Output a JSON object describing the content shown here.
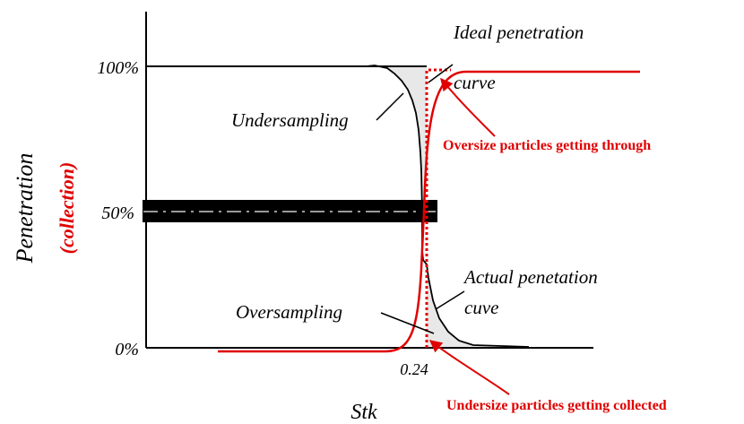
{
  "axes": {
    "y_title": "Penetration",
    "y_title_alt": "(collection)",
    "x_title": "Stk",
    "tick_100": "100%",
    "tick_50": "50%",
    "tick_0": "0%",
    "x_tick_value": "0.24"
  },
  "labels": {
    "ideal_line1": "Ideal penetration",
    "ideal_line2": "curve",
    "undersampling": "Undersampling",
    "oversampling": "Oversampling",
    "actual_line1": "Actual penetation",
    "actual_line2": "cuve",
    "oversize": "Oversize particles getting through",
    "undersize": "Undersize particles getting collected"
  },
  "colors": {
    "axis": "#000000",
    "actual_curve": "#000000",
    "shading": "#e8e8e8",
    "collection_curve": "#e00000",
    "ideal_dotted": "#e00000",
    "fifty_band": "#000000",
    "fifty_dash": "#9a9a9a"
  }
}
